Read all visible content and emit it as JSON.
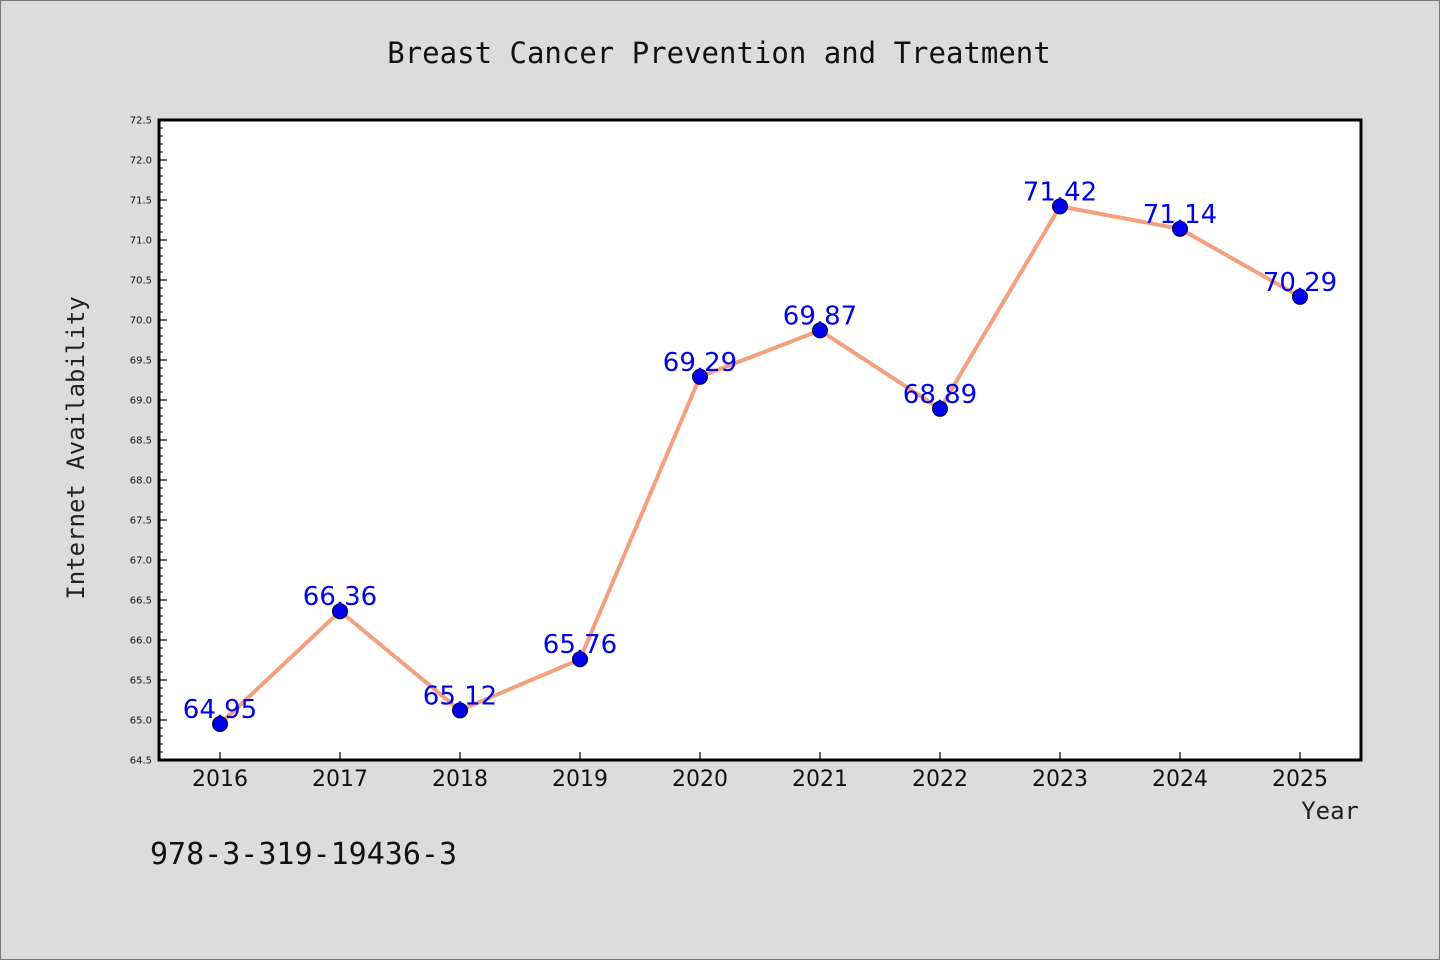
{
  "chart_data": {
    "type": "line",
    "title": "Breast Cancer Prevention and Treatment",
    "xlabel": "Year",
    "ylabel": "Internet Availability",
    "categories": [
      "2016",
      "2017",
      "2018",
      "2019",
      "2020",
      "2021",
      "2022",
      "2023",
      "2024",
      "2025"
    ],
    "series": [
      {
        "values": [
          64.95,
          66.36,
          65.12,
          65.76,
          69.29,
          69.87,
          68.89,
          71.42,
          71.14,
          70.29
        ],
        "data_labels": [
          "64.95",
          "66.36",
          "65.12",
          "65.76",
          "69.29",
          "69.87",
          "68.89",
          "71.42",
          "71.14",
          "70.29"
        ]
      }
    ],
    "ylim": [
      64.5,
      72.5
    ],
    "yticks": [
      "64.5",
      "65.0",
      "65.5",
      "66.0",
      "66.5",
      "67.0",
      "67.5",
      "68.0",
      "68.5",
      "69.0",
      "69.5",
      "70.0",
      "70.5",
      "71.0",
      "71.5",
      "72.0",
      "72.5"
    ],
    "grid": false,
    "legend": "none"
  },
  "colors": {
    "background": "#dcdcdc",
    "plot_area": "#ffffff",
    "line": "#f4a07f",
    "marker": "#0000ee",
    "data_label": "#0000ee"
  },
  "footer": {
    "isbn": "978-3-319-19436-3"
  }
}
